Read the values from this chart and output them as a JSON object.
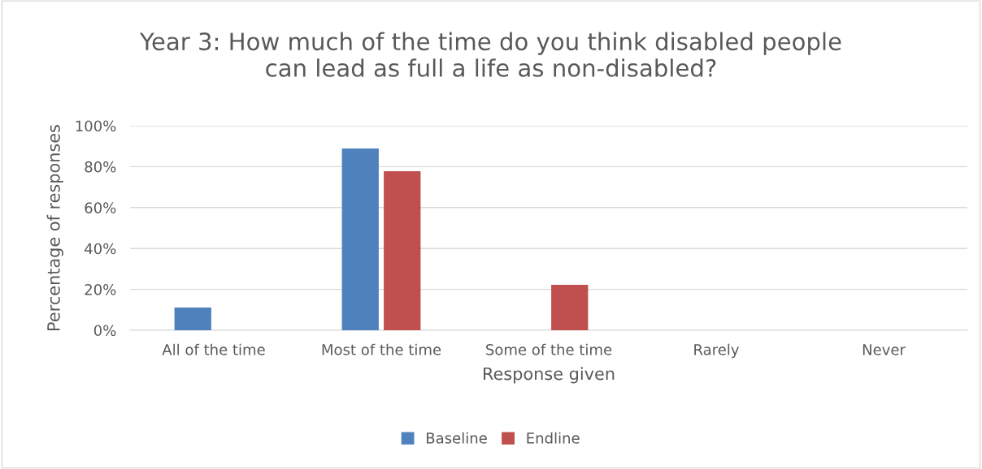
{
  "chart_data": {
    "type": "bar",
    "title": "Year 3: How much of the time do you think disabled people\ncan lead as full a life as non-disabled?",
    "xlabel": "Response given",
    "ylabel": "Percentage of responses",
    "categories": [
      "All of the time",
      "Most of the time",
      "Some of the time",
      "Rarely",
      "Never"
    ],
    "series": [
      {
        "name": "Baseline",
        "color": "#4f81bd",
        "values": [
          11.1,
          88.9,
          0,
          0,
          0
        ]
      },
      {
        "name": "Endline",
        "color": "#c0504d",
        "values": [
          0,
          77.8,
          22.2,
          0,
          0
        ]
      }
    ],
    "ylim": [
      0,
      100
    ],
    "yticks": [
      {
        "value": 0,
        "label": "0%"
      },
      {
        "value": 20,
        "label": "20%"
      },
      {
        "value": 40,
        "label": "40%"
      },
      {
        "value": 60,
        "label": "60%"
      },
      {
        "value": 80,
        "label": "80%"
      },
      {
        "value": 100,
        "label": "100%"
      }
    ],
    "grid": "y",
    "legend": "bottom"
  }
}
